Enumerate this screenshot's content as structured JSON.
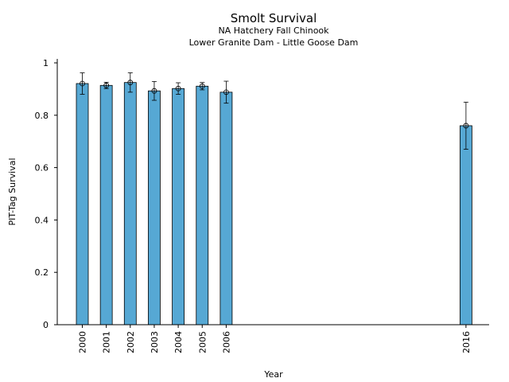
{
  "chart_data": {
    "type": "bar",
    "title": "Smolt Survival",
    "subtitle": [
      "NA Hatchery Fall Chinook",
      "Lower Granite Dam - Little Goose Dam"
    ],
    "xlabel": "Year",
    "ylabel": "PIT-Tag Survival",
    "ylim": [
      0,
      1
    ],
    "yticks": [
      "0",
      "0.2",
      "0.4",
      "0.6",
      "0.8",
      "1"
    ],
    "categories": [
      "2000",
      "2001",
      "2002",
      "2003",
      "2004",
      "2005",
      "2006",
      "2016"
    ],
    "x": [
      2000,
      2001,
      2002,
      2003,
      2004,
      2005,
      2006,
      2016
    ],
    "values": [
      0.921,
      0.914,
      0.925,
      0.893,
      0.902,
      0.911,
      0.888,
      0.76
    ],
    "err_low": [
      0.88,
      0.902,
      0.888,
      0.857,
      0.88,
      0.897,
      0.846,
      0.67
    ],
    "err_high": [
      0.962,
      0.926,
      0.962,
      0.929,
      0.924,
      0.925,
      0.93,
      0.85
    ],
    "bar_color": "#56a8d4",
    "grid": false,
    "legend": "none"
  }
}
